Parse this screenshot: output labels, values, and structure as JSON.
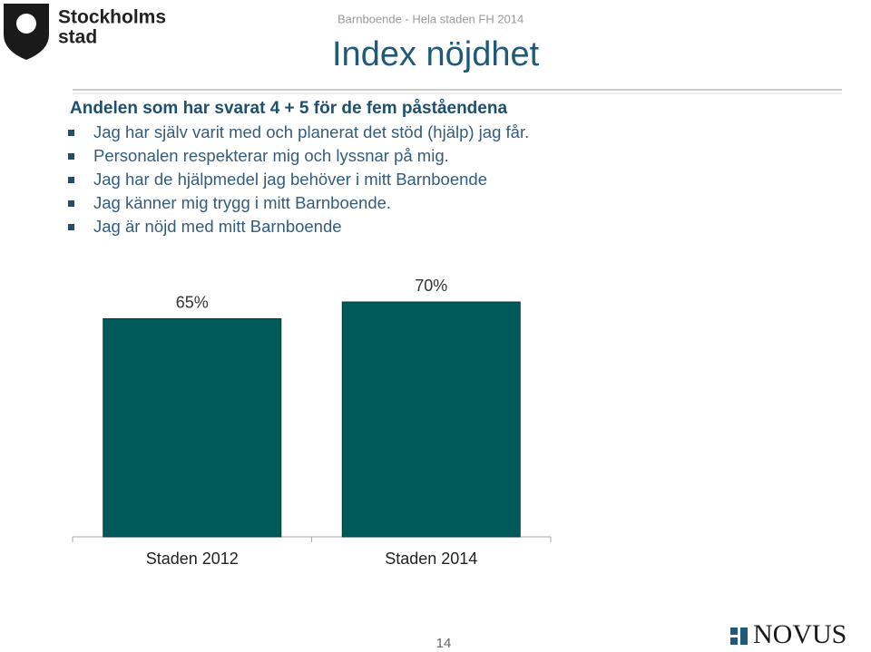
{
  "logo": {
    "line1": "Stockholms",
    "line2": "stad"
  },
  "header": {
    "subtitle": "Barnboende - Hela staden FH 2014",
    "title": "Index nöjdhet"
  },
  "heading": "Andelen som har svarat 4 + 5 för de fem påståendena",
  "bullets": [
    "Jag har själv varit med och planerat det stöd (hjälp) jag får.",
    "Personalen respekterar mig och lyssnar på mig.",
    "Jag har de hjälpmedel jag behöver i mitt Barnboende",
    "Jag känner mig trygg i mitt Barnboende.",
    "Jag är nöjd med mitt Barnboende"
  ],
  "chart_data": {
    "type": "bar",
    "categories": [
      "Staden 2012",
      "Staden 2014"
    ],
    "values": [
      65,
      70
    ],
    "value_labels": [
      "65%",
      "70%"
    ],
    "color": "#005a5a",
    "ylim": [
      0,
      100
    ]
  },
  "footer": {
    "page_number": "14",
    "brand": "NOVUS"
  }
}
